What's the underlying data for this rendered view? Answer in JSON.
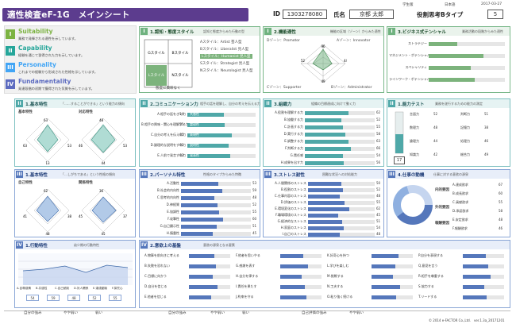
{
  "header": {
    "title": "適性検査eF-1G　メインシート",
    "grade": "学生版",
    "region": "日本語",
    "date": "2017-03-27",
    "id_label": "ID",
    "id_value": "1303278080",
    "name_label": "氏名",
    "name_value": "京都 太郎",
    "type_label": "役割思考Bタイプ",
    "type_value": "5"
  },
  "categories": [
    {
      "num": "I",
      "title": "Suitability",
      "desc": "業務で発揮される適性を示しています。",
      "color": "#7cb342"
    },
    {
      "num": "II",
      "title": "Capability",
      "desc": "経験を通じて習得された力を示しています。",
      "color": "#26a69a"
    },
    {
      "num": "III",
      "title": "Personality",
      "desc": "これまでの経験から形成された性格を示しています。",
      "color": "#42a5f5"
    },
    {
      "num": "IV",
      "title": "Fundamentality",
      "desc": "発達段階の初期で獲得された気質を示しています。",
      "color": "#5c6bc0"
    }
  ],
  "p1": {
    "n": "I",
    "title": "1.認知・態度スタイル",
    "sub": "認知と態度からみた行動の型",
    "styles": [
      "Aスタイル：Artist 芸人型",
      "Bスタイル：Liberalist 見人型",
      "Lスタイル：Humanist 見人型",
      "Sスタイル：Strategist 見人型",
      "Nスタイル：Neurologist 見人型"
    ],
    "grid": [
      "Gスタイル",
      "Bスタイル",
      "Aスタイル",
      "Cスタイル",
      "Lスタイル",
      "Nスタイル"
    ],
    "bottom": "態度に興味なく"
  },
  "p2": {
    "n": "I",
    "title": "2.機能適性",
    "sub": "機能の区域（ゾーン）からみた適性",
    "d_label": "Dゾーン：Promotor",
    "a_label": "Aゾーン：Innovator",
    "c_label": "Cゾーン：Supporter",
    "b_label": "Bゾーン：Administrator",
    "vals": [
      "96",
      "44",
      "49",
      "52"
    ]
  },
  "p3": {
    "n": "I",
    "title": "3.ビジネス式テンシャル",
    "sub": "業務活動の段階からみた適性",
    "rows": [
      "ストラテジー",
      "マネジメント・ポテンシャル",
      "スペシャリティ",
      "ラインワーク・ポテンシャル"
    ],
    "values": [
      38,
      72,
      55,
      60
    ]
  },
  "p4": {
    "n": "II",
    "title": "1.基本特性",
    "sub": "「……することができる」という能力の傾向",
    "g1": "基本特性",
    "g2": "対応特性",
    "v1": [
      "13",
      "53",
      "63",
      "63"
    ],
    "v2": [
      "44",
      "53",
      "46",
      "48"
    ]
  },
  "p5": {
    "n": "II",
    "title": "2.コミュニケーション力",
    "sub": "相手の話を理解し、自分の考えを伝える力",
    "rows": [
      "A.相手の話をきく力",
      "B.相手の興味・関心を理解する力",
      "C.自分の考えを伝える力",
      "D.論理的な説明をする力",
      "E.人前で発言する力"
    ],
    "values": [
      54,
      55,
      65,
      61,
      63
    ],
    "tags": [
      "共感性",
      "論理性",
      "表現性",
      "説明性",
      "発表性"
    ]
  },
  "p6": {
    "n": "II",
    "title": "3.組織力",
    "sub": "組織の目標達成に向けて動く力",
    "rows": [
      "A.役割を理解する力",
      "B.協働する力",
      "C.計画する力",
      "D.実行する力",
      "E.調整する力",
      "F.判断する力",
      "G.責任感",
      "H.成果を出す力"
    ],
    "values": [
      62,
      52,
      55,
      58,
      63,
      66,
      54,
      56
    ]
  },
  "p7": {
    "n": "II",
    "title": "1.能力テスト",
    "sub": "業務を遂行するための能力の測定",
    "score": "17",
    "rows": [
      "言語力",
      "数理力",
      "論理力",
      "知識力",
      "判断力",
      "記憶力",
      "処理力",
      "総合力"
    ],
    "values": [
      "52",
      "48",
      "44",
      "42",
      "51",
      "38",
      "46",
      "49"
    ]
  },
  "p8": {
    "n": "III",
    "title": "1.基本特性",
    "sub": "「…しがちである」という性格の傾向",
    "g1": "自己特性",
    "g2": "関係特性",
    "v1": [
      "48",
      "38",
      "41",
      "62"
    ],
    "v2": [
      "45",
      "37",
      "45",
      "36"
    ]
  },
  "p9": {
    "n": "III",
    "title": "2.パーソナル特性",
    "sub": "性格のタイプからみた特徴",
    "rows": [
      "A.活動性",
      "B.社会的内向性",
      "C.思考的内向性",
      "D.神経質",
      "E.協調性",
      "F.攻撃性",
      "G.自己顕示性",
      "H.慎重性"
    ],
    "values": [
      53,
      59,
      48,
      52,
      55,
      60,
      51,
      45
    ]
  },
  "p10": {
    "n": "III",
    "title": "3.ストレス耐性",
    "sub": "困難な状況への対処能力",
    "rows": [
      "A.人間関係のストレス",
      "B.役割のストレス",
      "C.仕事内容のストレス",
      "D.評価のストレス",
      "E.環境変化のストレス",
      "F.職場環境のストレス",
      "G.経済的なストレス",
      "H.家庭のストレス",
      "I.自己のストレス"
    ],
    "values": [
      50,
      52,
      48,
      55,
      62,
      45,
      51,
      54,
      48
    ]
  },
  "p11": {
    "n": "III",
    "title": "4.仕事の動機",
    "sub": "仕事に対する意欲の源泉",
    "groups": [
      "内的要因",
      "外的要因",
      "報酬要因"
    ],
    "rows": [
      "A.達成欲求",
      "B.成長欲求",
      "C.貢献欲求",
      "D.承認欲求",
      "E.安定欲求",
      "F.報酬欲求"
    ],
    "values": [
      "67",
      "60",
      "55",
      "58",
      "48",
      "46"
    ]
  },
  "p12": {
    "n": "IV",
    "title": "1.行動特性",
    "sub": "幼少期の行動特性",
    "labels": [
      "A.自尊感情",
      "B.共感性",
      "C.自己統制",
      "D.対人関係",
      "E.達成動機",
      "F.探究心"
    ],
    "values": [
      48,
      50,
      54,
      46,
      55,
      52
    ],
    "cells": [
      "54",
      "59",
      "48",
      "52",
      "55"
    ]
  },
  "p13": {
    "n": "IV",
    "title": "2.意欲上の基盤",
    "sub": "意欲の源泉となる要素",
    "cols": [
      [
        "A.物事を前向きに考える",
        "B.失敗を恐れない",
        "C.目標に向かう",
        "D.自分を信じる",
        "E.他者を信じる"
      ],
      [
        "F.他者を思いやる",
        "G.感謝を表す",
        "H.自分を律する",
        "I.責任を果たす",
        "J.約束を守る"
      ],
      [
        "K.好奇心を持つ",
        "L.学びを楽しむ",
        "M.挑戦する",
        "N.工夫する",
        "O.粘り強く続ける"
      ],
      [
        "P.自分を表現する",
        "Q.意見を言う",
        "R.相手を尊重する",
        "S.協力する",
        "T.リードする"
      ]
    ],
    "values": [
      [
        62,
        66,
        58,
        70,
        54
      ],
      [
        55,
        68,
        52,
        60,
        63
      ],
      [
        66,
        58,
        52,
        70,
        60
      ],
      [
        56,
        62,
        68,
        51,
        57
      ]
    ]
  },
  "footer": {
    "a": "自分の強み",
    "b": "やや弱い",
    "c": "弱い",
    "d": "自分の強み",
    "e": "やや弱い",
    "f": "弱い",
    "g": "自己評価の強み",
    "h": "やや弱い",
    "copyright": "© 2014 e-FACTOR Co.,Ltd.　ver.1.3a_20171201"
  }
}
